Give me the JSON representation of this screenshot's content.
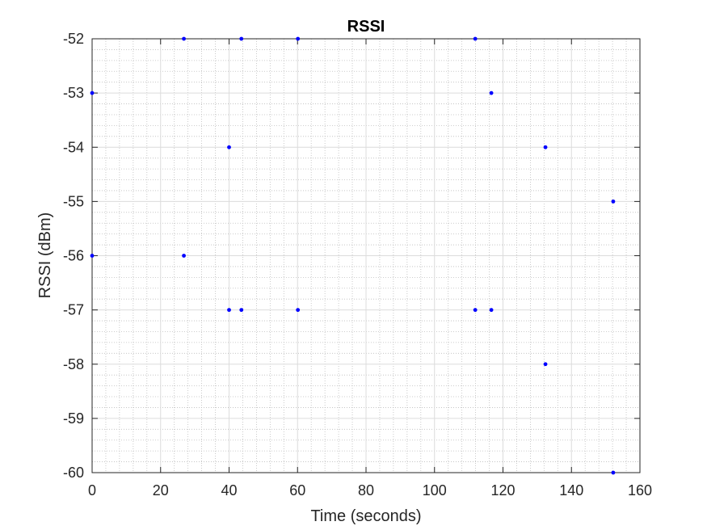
{
  "chart_data": {
    "type": "scatter",
    "title": "RSSI",
    "xlabel": "Time (seconds)",
    "ylabel": "RSSI (dBm)",
    "xlim": [
      0,
      160
    ],
    "ylim": [
      -60,
      -52
    ],
    "xticks": [
      "0",
      "20",
      "40",
      "60",
      "80",
      "100",
      "120",
      "140",
      "160"
    ],
    "yticks": [
      "-52",
      "-53",
      "-54",
      "-55",
      "-56",
      "-57",
      "-58",
      "-59",
      "-60"
    ],
    "grid": "major and minor",
    "series": [
      {
        "marker": "dot",
        "color": "#0000ff",
        "points": [
          {
            "x": 0,
            "y": -53
          },
          {
            "x": 0,
            "y": -56
          },
          {
            "x": 26.8,
            "y": -52
          },
          {
            "x": 26.8,
            "y": -56
          },
          {
            "x": 40,
            "y": -54
          },
          {
            "x": 40,
            "y": -57
          },
          {
            "x": 43.6,
            "y": -52
          },
          {
            "x": 43.6,
            "y": -57
          },
          {
            "x": 60.1,
            "y": -52
          },
          {
            "x": 60.1,
            "y": -57
          },
          {
            "x": 111.9,
            "y": -52
          },
          {
            "x": 111.9,
            "y": -57
          },
          {
            "x": 116.6,
            "y": -53
          },
          {
            "x": 116.6,
            "y": -57
          },
          {
            "x": 132.4,
            "y": -54
          },
          {
            "x": 132.4,
            "y": -58
          },
          {
            "x": 152.2,
            "y": -55
          },
          {
            "x": 152.2,
            "y": -60
          }
        ]
      }
    ]
  }
}
